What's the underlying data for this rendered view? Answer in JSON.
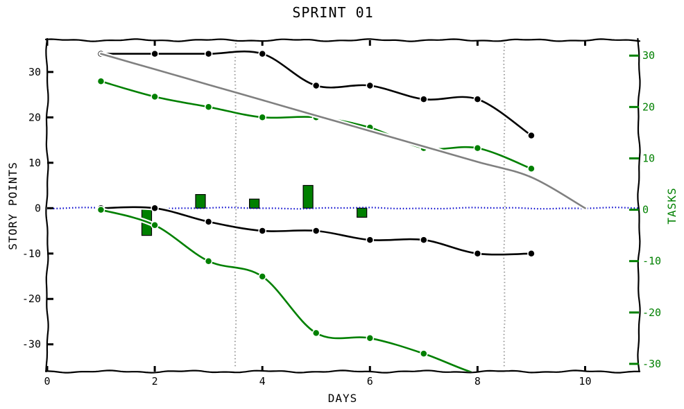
{
  "chart_data": {
    "type": "line",
    "title": "SPRINT 01",
    "xlabel": "DAYS",
    "ylabel_left": "STORY POINTS",
    "ylabel_right": "TASKS",
    "xlim": [
      0,
      11
    ],
    "ylim_left": [
      -36,
      37
    ],
    "ylim_right": [
      -31.5,
      33
    ],
    "xticks": [
      0,
      2,
      4,
      6,
      8,
      10
    ],
    "yticks_left": [
      -30,
      -20,
      -10,
      0,
      10,
      20,
      30
    ],
    "yticks_right": [
      -30,
      -20,
      -10,
      0,
      10,
      20,
      30
    ],
    "vlines": [
      3.5,
      8.5
    ],
    "series": [
      {
        "axis": "left",
        "color": "#000000",
        "x": [
          1,
          2,
          3,
          4,
          5,
          6,
          7,
          8,
          9
        ],
        "values": [
          34,
          34,
          34,
          34,
          27,
          27,
          24,
          24,
          16
        ]
      },
      {
        "axis": "right",
        "color": "#008000",
        "x": [
          1,
          2,
          3,
          4,
          5,
          6,
          7,
          8,
          9
        ],
        "values": [
          25,
          22,
          20,
          18,
          18,
          16,
          12,
          12,
          8
        ]
      },
      {
        "axis": "left",
        "color": "#808080",
        "x": [
          1,
          2,
          3,
          4,
          5,
          6,
          7,
          8,
          9,
          10
        ],
        "values": [
          34,
          30.6,
          27.2,
          23.8,
          20.4,
          17,
          13.6,
          10.2,
          6.8,
          0
        ],
        "markers": false
      },
      {
        "axis": "left",
        "color": "#000000",
        "x": [
          1,
          2,
          3,
          4,
          5,
          6,
          7,
          8,
          9
        ],
        "values": [
          0,
          0,
          -3,
          -5,
          -5,
          -7,
          -7,
          -10,
          -10
        ]
      },
      {
        "axis": "right",
        "color": "#008000",
        "x": [
          1,
          2,
          3,
          4,
          5,
          6,
          7,
          8,
          9
        ],
        "values": [
          0,
          -3,
          -10,
          -13,
          -24,
          -25,
          -28,
          -32,
          -34
        ]
      }
    ],
    "bars": {
      "axis": "left",
      "color": "#008000",
      "x": [
        1.85,
        2.85,
        3.85,
        4.85,
        5.85
      ],
      "values": [
        -6,
        3,
        2,
        5,
        -2
      ]
    },
    "zero_line_color": "#0000cc"
  }
}
